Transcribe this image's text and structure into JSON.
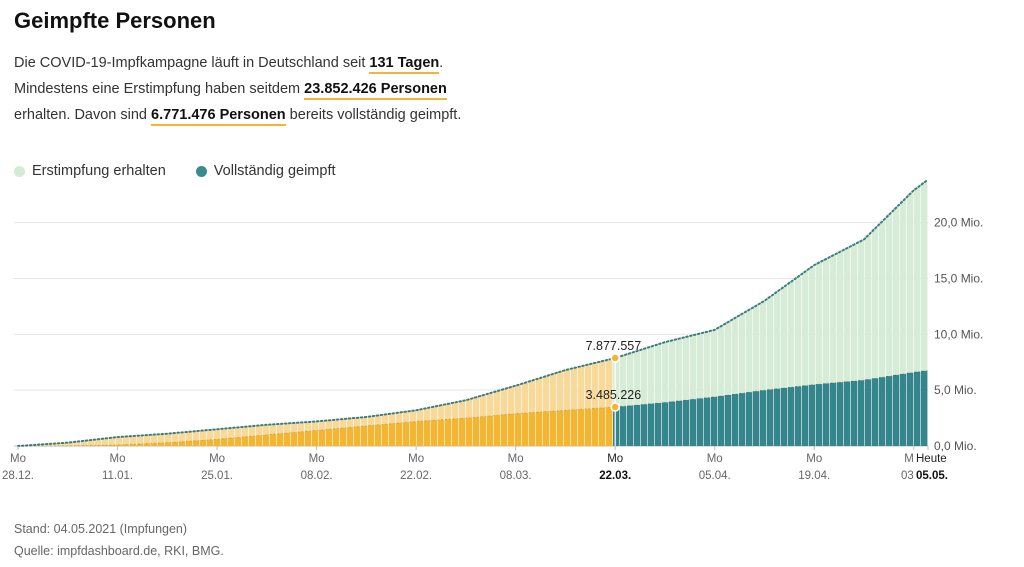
{
  "title": "Geimpfte Personen",
  "intro": {
    "line1_pre": "Die COVID-19-Impfkampagne läuft in Deutschland seit ",
    "days": "131 Tagen",
    "line1_post": ".",
    "line2_pre": "Mindestens eine Erstimpfung haben seitdem ",
    "first_count": "23.852.426 Personen",
    "line3_pre": "erhalten. Davon sind ",
    "full_count": "6.771.476 Personen",
    "line3_post": " bereits vollständig geimpft."
  },
  "legend": [
    {
      "label": "Erstimpfung erhalten",
      "color": "#d4ebd4"
    },
    {
      "label": "Vollständig geimpft",
      "color": "#3a8a90"
    }
  ],
  "colors": {
    "first_past": "#f8d999",
    "second_past": "#f2b632",
    "first_future": "#d6ecd6",
    "second_future": "#35858c",
    "dots": "#3c7c80",
    "grid": "#e6e6e6"
  },
  "chart_data": {
    "type": "area",
    "x_unit": "date",
    "x": [
      "28.12.",
      "04.01.",
      "11.01.",
      "18.01.",
      "25.01.",
      "01.02.",
      "08.02.",
      "15.02.",
      "22.02.",
      "01.03.",
      "08.03.",
      "15.03.",
      "22.03.",
      "29.03.",
      "05.04.",
      "12.04.",
      "19.04.",
      "26.04.",
      "03.05.",
      "05.05."
    ],
    "series": [
      {
        "name": "Erstimpfung erhalten",
        "values": [
          0.0,
          0.3,
          0.8,
          1.1,
          1.5,
          1.9,
          2.2,
          2.6,
          3.2,
          4.1,
          5.4,
          6.8,
          7.88,
          9.3,
          10.4,
          13.0,
          16.2,
          18.5,
          22.9,
          23.85
        ]
      },
      {
        "name": "Vollständig geimpft",
        "values": [
          0.0,
          0.02,
          0.1,
          0.3,
          0.6,
          1.0,
          1.4,
          1.8,
          2.2,
          2.5,
          2.9,
          3.2,
          3.49,
          3.9,
          4.4,
          5.0,
          5.5,
          5.9,
          6.6,
          6.77
        ]
      }
    ],
    "highlight": {
      "x": "22.03.",
      "first_label": "7.877.557",
      "second_label": "3.485.226"
    },
    "ylim": [
      0,
      24
    ],
    "y_ticks": [
      {
        "value": 0,
        "label": "0,0 Mio."
      },
      {
        "value": 5,
        "label": "5,0 Mio."
      },
      {
        "value": 10,
        "label": "10,0 Mio."
      },
      {
        "value": 15,
        "label": "15,0 Mio."
      },
      {
        "value": 20,
        "label": "20,0 Mio."
      }
    ],
    "x_ticks": [
      {
        "x": "28.12.",
        "day": "Mo",
        "date": "28.12."
      },
      {
        "x": "11.01.",
        "day": "Mo",
        "date": "11.01."
      },
      {
        "x": "25.01.",
        "day": "Mo",
        "date": "25.01."
      },
      {
        "x": "08.02.",
        "day": "Mo",
        "date": "08.02."
      },
      {
        "x": "22.02.",
        "day": "Mo",
        "date": "22.02."
      },
      {
        "x": "08.03.",
        "day": "Mo",
        "date": "08.03."
      },
      {
        "x": "22.03.",
        "day": "Mo",
        "date": "22.03.",
        "bold": true
      },
      {
        "x": "05.04.",
        "day": "Mo",
        "date": "05.04."
      },
      {
        "x": "19.04.",
        "day": "Mo",
        "date": "19.04."
      },
      {
        "x": "03.05.",
        "day": "M",
        "date": "03"
      },
      {
        "x": "05.05.",
        "day": "Heute",
        "date": "05.05.",
        "bold": true
      }
    ]
  },
  "footer": {
    "stand": "Stand: 04.05.2021 (Impfungen)",
    "quelle": "Quelle: impfdashboard.de, RKI, BMG."
  }
}
